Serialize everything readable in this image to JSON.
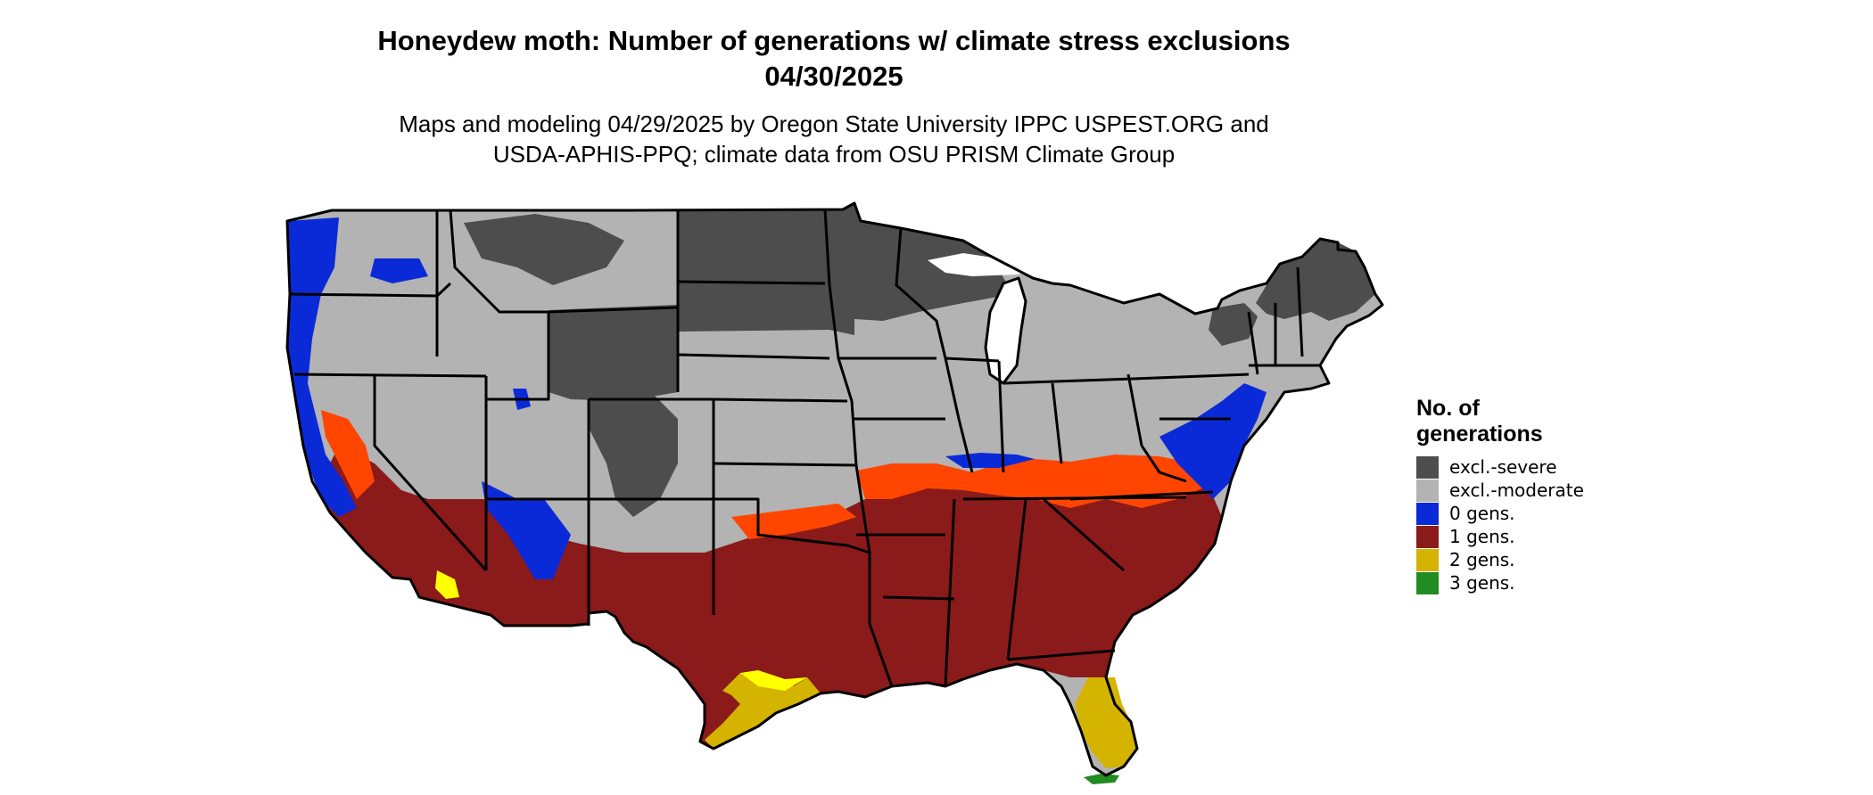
{
  "title_line1": "Honeydew moth: Number of generations w/ climate stress exclusions",
  "title_line2": "04/30/2025",
  "subtitle_line1": "Maps and modeling 04/29/2025 by Oregon State University IPPC USPEST.ORG and",
  "subtitle_line2": "USDA-APHIS-PPQ; climate data from OSU PRISM Climate Group",
  "legend": {
    "title_line1": "No. of",
    "title_line2": "generations",
    "items": [
      {
        "label": "excl.-severe",
        "color": "#4d4d4d"
      },
      {
        "label": "excl.-moderate",
        "color": "#b3b3b3"
      },
      {
        "label": "0 gens.",
        "color": "#0a2ad8"
      },
      {
        "label": "1 gens.",
        "color": "#8b1a1a"
      },
      {
        "label": "2 gens.",
        "color": "#d4b400"
      },
      {
        "label": "3 gens.",
        "color": "#228b22"
      }
    ]
  },
  "map_colors": {
    "severe": "#4d4d4d",
    "moderate": "#b3b3b3",
    "zero": "#0a2ad8",
    "one": "#8b1a1a",
    "two": "#d4b400",
    "two_bright": "#ffff00",
    "orange": "#ff4500",
    "three": "#228b22",
    "border": "#000000"
  }
}
